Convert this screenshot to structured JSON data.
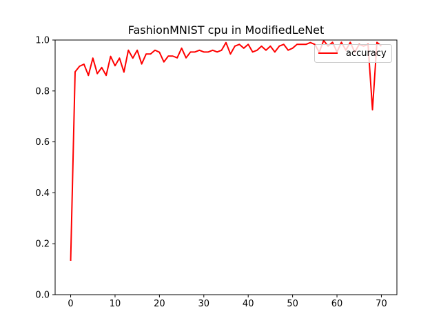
{
  "chart_data": {
    "type": "line",
    "title": "FashionMNIST cpu in ModifiedLeNet",
    "xlabel": "",
    "ylabel": "",
    "xlim": [
      -3.5,
      73.5
    ],
    "ylim": [
      0.0,
      1.0
    ],
    "xticks": [
      0,
      10,
      20,
      30,
      40,
      50,
      60,
      70
    ],
    "xtick_labels": [
      "0",
      "10",
      "20",
      "30",
      "40",
      "50",
      "60",
      "70"
    ],
    "yticks": [
      0.0,
      0.2,
      0.4,
      0.6,
      0.8,
      1.0
    ],
    "ytick_labels": [
      "0.0",
      "0.2",
      "0.4",
      "0.6",
      "0.8",
      "1.0"
    ],
    "grid": false,
    "legend_position": "upper right",
    "series": [
      {
        "name": "accuracy",
        "color": "#ff0000",
        "x": [
          0,
          1,
          2,
          3,
          4,
          5,
          6,
          7,
          8,
          9,
          10,
          11,
          12,
          13,
          14,
          15,
          16,
          17,
          18,
          19,
          20,
          21,
          22,
          23,
          24,
          25,
          26,
          27,
          28,
          29,
          30,
          31,
          32,
          33,
          34,
          35,
          36,
          37,
          38,
          39,
          40,
          41,
          42,
          43,
          44,
          45,
          46,
          47,
          48,
          49,
          50,
          51,
          52,
          53,
          54,
          55,
          56,
          57,
          58,
          59,
          60,
          61,
          62,
          63,
          64,
          65,
          66,
          67,
          68,
          69,
          70
        ],
        "values": [
          0.133,
          0.875,
          0.897,
          0.905,
          0.861,
          0.929,
          0.868,
          0.892,
          0.861,
          0.936,
          0.899,
          0.929,
          0.874,
          0.96,
          0.929,
          0.96,
          0.906,
          0.945,
          0.945,
          0.96,
          0.952,
          0.914,
          0.937,
          0.937,
          0.93,
          0.968,
          0.93,
          0.953,
          0.953,
          0.96,
          0.953,
          0.953,
          0.96,
          0.953,
          0.96,
          0.99,
          0.945,
          0.976,
          0.983,
          0.968,
          0.983,
          0.953,
          0.96,
          0.976,
          0.96,
          0.976,
          0.953,
          0.976,
          0.983,
          0.96,
          0.968,
          0.983,
          0.983,
          0.983,
          0.99,
          0.983,
          0.952,
          0.998,
          0.976,
          0.991,
          0.953,
          0.991,
          0.96,
          0.991,
          0.952,
          0.983,
          0.976,
          0.983,
          0.726,
          0.991,
          0.976
        ]
      }
    ]
  }
}
